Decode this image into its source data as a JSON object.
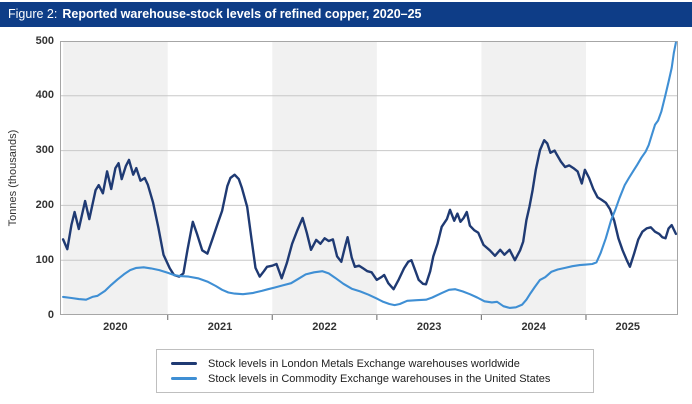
{
  "figure": {
    "label": "Figure 2:",
    "title": "Reported warehouse-stock levels of refined copper, 2020–25"
  },
  "colors": {
    "header_bg": "#0e3d87",
    "lme_line": "#1f3a73",
    "comex_line": "#3f8fd4",
    "band_fill": "#f1f1f1",
    "gridline": "#c8c8c8",
    "plot_border": "#a6a6a6",
    "tick_mark": "#808080",
    "axis_text": "#333333"
  },
  "chart_data": {
    "type": "line",
    "title": "Reported warehouse-stock levels of refined copper, 2020–25",
    "xlabel": "",
    "ylabel": "Tonnes (thousands)",
    "ylim": [
      0,
      500
    ],
    "y_ticks": [
      0,
      100,
      200,
      300,
      400,
      500
    ],
    "x_tick_labels": [
      "2020",
      "2021",
      "2022",
      "2023",
      "2024",
      "2025"
    ],
    "x_range_years": [
      2019.97,
      2025.88
    ],
    "x_year_boundary_ticks": [
      2021,
      2022,
      2023,
      2024,
      2025
    ],
    "shaded_years": [
      2020,
      2022,
      2024
    ],
    "grid": "horizontal",
    "legend_position": "bottom",
    "series": [
      {
        "name": "Stock levels in London Metals Exchange warehouses worldwide",
        "color": "#1f3a73",
        "points": [
          [
            2020.0,
            138
          ],
          [
            2020.04,
            120
          ],
          [
            2020.08,
            165
          ],
          [
            2020.11,
            188
          ],
          [
            2020.15,
            157
          ],
          [
            2020.21,
            208
          ],
          [
            2020.25,
            175
          ],
          [
            2020.31,
            228
          ],
          [
            2020.34,
            237
          ],
          [
            2020.38,
            222
          ],
          [
            2020.42,
            262
          ],
          [
            2020.46,
            230
          ],
          [
            2020.5,
            268
          ],
          [
            2020.53,
            277
          ],
          [
            2020.56,
            248
          ],
          [
            2020.6,
            272
          ],
          [
            2020.63,
            283
          ],
          [
            2020.67,
            256
          ],
          [
            2020.7,
            268
          ],
          [
            2020.74,
            245
          ],
          [
            2020.78,
            250
          ],
          [
            2020.81,
            238
          ],
          [
            2020.86,
            205
          ],
          [
            2020.91,
            160
          ],
          [
            2020.96,
            110
          ],
          [
            2021.02,
            85
          ],
          [
            2021.06,
            73
          ],
          [
            2021.11,
            70
          ],
          [
            2021.15,
            76
          ],
          [
            2021.19,
            120
          ],
          [
            2021.24,
            170
          ],
          [
            2021.28,
            148
          ],
          [
            2021.33,
            118
          ],
          [
            2021.38,
            112
          ],
          [
            2021.43,
            140
          ],
          [
            2021.48,
            168
          ],
          [
            2021.52,
            190
          ],
          [
            2021.57,
            235
          ],
          [
            2021.6,
            250
          ],
          [
            2021.64,
            256
          ],
          [
            2021.68,
            248
          ],
          [
            2021.71,
            232
          ],
          [
            2021.76,
            197
          ],
          [
            2021.8,
            140
          ],
          [
            2021.84,
            86
          ],
          [
            2021.88,
            70
          ],
          [
            2021.92,
            80
          ],
          [
            2021.95,
            88
          ],
          [
            2022.0,
            90
          ],
          [
            2022.04,
            93
          ],
          [
            2022.09,
            67
          ],
          [
            2022.14,
            95
          ],
          [
            2022.19,
            130
          ],
          [
            2022.24,
            155
          ],
          [
            2022.29,
            177
          ],
          [
            2022.33,
            150
          ],
          [
            2022.37,
            119
          ],
          [
            2022.42,
            137
          ],
          [
            2022.46,
            130
          ],
          [
            2022.5,
            140
          ],
          [
            2022.54,
            135
          ],
          [
            2022.58,
            138
          ],
          [
            2022.62,
            107
          ],
          [
            2022.66,
            97
          ],
          [
            2022.7,
            128
          ],
          [
            2022.72,
            142
          ],
          [
            2022.76,
            105
          ],
          [
            2022.79,
            88
          ],
          [
            2022.83,
            90
          ],
          [
            2022.87,
            85
          ],
          [
            2022.91,
            80
          ],
          [
            2022.95,
            78
          ],
          [
            2023.0,
            64
          ],
          [
            2023.05,
            70
          ],
          [
            2023.07,
            73
          ],
          [
            2023.11,
            58
          ],
          [
            2023.16,
            47
          ],
          [
            2023.21,
            65
          ],
          [
            2023.26,
            85
          ],
          [
            2023.3,
            97
          ],
          [
            2023.33,
            100
          ],
          [
            2023.37,
            80
          ],
          [
            2023.4,
            64
          ],
          [
            2023.44,
            57
          ],
          [
            2023.47,
            56
          ],
          [
            2023.51,
            80
          ],
          [
            2023.54,
            107
          ],
          [
            2023.58,
            130
          ],
          [
            2023.62,
            161
          ],
          [
            2023.67,
            175
          ],
          [
            2023.7,
            192
          ],
          [
            2023.74,
            172
          ],
          [
            2023.77,
            185
          ],
          [
            2023.8,
            170
          ],
          [
            2023.83,
            177
          ],
          [
            2023.86,
            188
          ],
          [
            2023.89,
            163
          ],
          [
            2023.93,
            155
          ],
          [
            2023.97,
            150
          ],
          [
            2024.02,
            128
          ],
          [
            2024.08,
            118
          ],
          [
            2024.13,
            108
          ],
          [
            2024.18,
            119
          ],
          [
            2024.22,
            110
          ],
          [
            2024.27,
            119
          ],
          [
            2024.32,
            100
          ],
          [
            2024.37,
            118
          ],
          [
            2024.4,
            134
          ],
          [
            2024.43,
            173
          ],
          [
            2024.46,
            198
          ],
          [
            2024.49,
            228
          ],
          [
            2024.52,
            265
          ],
          [
            2024.56,
            301
          ],
          [
            2024.6,
            319
          ],
          [
            2024.63,
            313
          ],
          [
            2024.66,
            296
          ],
          [
            2024.7,
            300
          ],
          [
            2024.72,
            293
          ],
          [
            2024.76,
            280
          ],
          [
            2024.8,
            270
          ],
          [
            2024.84,
            273
          ],
          [
            2024.88,
            268
          ],
          [
            2024.92,
            262
          ],
          [
            2024.96,
            240
          ],
          [
            2024.99,
            265
          ],
          [
            2025.03,
            250
          ],
          [
            2025.07,
            230
          ],
          [
            2025.11,
            215
          ],
          [
            2025.15,
            210
          ],
          [
            2025.19,
            205
          ],
          [
            2025.23,
            193
          ],
          [
            2025.27,
            172
          ],
          [
            2025.31,
            140
          ],
          [
            2025.35,
            118
          ],
          [
            2025.39,
            100
          ],
          [
            2025.42,
            88
          ],
          [
            2025.46,
            112
          ],
          [
            2025.5,
            138
          ],
          [
            2025.54,
            152
          ],
          [
            2025.58,
            158
          ],
          [
            2025.62,
            160
          ],
          [
            2025.66,
            152
          ],
          [
            2025.7,
            148
          ],
          [
            2025.73,
            142
          ],
          [
            2025.76,
            140
          ],
          [
            2025.79,
            158
          ],
          [
            2025.82,
            164
          ],
          [
            2025.86,
            148
          ]
        ]
      },
      {
        "name": "Stock levels in Commodity Exchange warehouses in the United States",
        "color": "#3f8fd4",
        "points": [
          [
            2020.0,
            33
          ],
          [
            2020.08,
            31
          ],
          [
            2020.15,
            29
          ],
          [
            2020.22,
            28
          ],
          [
            2020.28,
            33
          ],
          [
            2020.33,
            35
          ],
          [
            2020.4,
            44
          ],
          [
            2020.46,
            55
          ],
          [
            2020.52,
            65
          ],
          [
            2020.58,
            74
          ],
          [
            2020.64,
            82
          ],
          [
            2020.7,
            86
          ],
          [
            2020.77,
            87
          ],
          [
            2020.84,
            85
          ],
          [
            2020.92,
            82
          ],
          [
            2021.0,
            77
          ],
          [
            2021.06,
            73
          ],
          [
            2021.12,
            71
          ],
          [
            2021.2,
            70
          ],
          [
            2021.29,
            67
          ],
          [
            2021.38,
            61
          ],
          [
            2021.46,
            53
          ],
          [
            2021.52,
            46
          ],
          [
            2021.58,
            41
          ],
          [
            2021.64,
            39
          ],
          [
            2021.72,
            38
          ],
          [
            2021.81,
            40
          ],
          [
            2021.9,
            44
          ],
          [
            2021.96,
            47
          ],
          [
            2022.02,
            50
          ],
          [
            2022.1,
            54
          ],
          [
            2022.18,
            58
          ],
          [
            2022.25,
            66
          ],
          [
            2022.32,
            74
          ],
          [
            2022.4,
            78
          ],
          [
            2022.48,
            80
          ],
          [
            2022.54,
            76
          ],
          [
            2022.6,
            68
          ],
          [
            2022.68,
            57
          ],
          [
            2022.76,
            48
          ],
          [
            2022.84,
            43
          ],
          [
            2022.92,
            37
          ],
          [
            2023.0,
            30
          ],
          [
            2023.06,
            24
          ],
          [
            2023.12,
            20
          ],
          [
            2023.17,
            18
          ],
          [
            2023.22,
            20
          ],
          [
            2023.29,
            26
          ],
          [
            2023.38,
            27
          ],
          [
            2023.47,
            28
          ],
          [
            2023.53,
            32
          ],
          [
            2023.62,
            40
          ],
          [
            2023.69,
            46
          ],
          [
            2023.75,
            47
          ],
          [
            2023.82,
            43
          ],
          [
            2023.89,
            38
          ],
          [
            2023.96,
            32
          ],
          [
            2024.03,
            25
          ],
          [
            2024.1,
            23
          ],
          [
            2024.15,
            24
          ],
          [
            2024.21,
            16
          ],
          [
            2024.27,
            13
          ],
          [
            2024.33,
            14
          ],
          [
            2024.39,
            19
          ],
          [
            2024.43,
            28
          ],
          [
            2024.47,
            40
          ],
          [
            2024.51,
            51
          ],
          [
            2024.56,
            64
          ],
          [
            2024.61,
            69
          ],
          [
            2024.67,
            79
          ],
          [
            2024.73,
            83
          ],
          [
            2024.8,
            86
          ],
          [
            2024.87,
            89
          ],
          [
            2024.94,
            91
          ],
          [
            2025.0,
            92
          ],
          [
            2025.06,
            93
          ],
          [
            2025.1,
            96
          ],
          [
            2025.14,
            113
          ],
          [
            2025.19,
            140
          ],
          [
            2025.24,
            173
          ],
          [
            2025.28,
            192
          ],
          [
            2025.32,
            213
          ],
          [
            2025.37,
            237
          ],
          [
            2025.41,
            250
          ],
          [
            2025.45,
            262
          ],
          [
            2025.49,
            274
          ],
          [
            2025.53,
            287
          ],
          [
            2025.57,
            298
          ],
          [
            2025.6,
            310
          ],
          [
            2025.63,
            329
          ],
          [
            2025.66,
            347
          ],
          [
            2025.69,
            355
          ],
          [
            2025.72,
            371
          ],
          [
            2025.76,
            402
          ],
          [
            2025.79,
            426
          ],
          [
            2025.82,
            451
          ],
          [
            2025.84,
            478
          ],
          [
            2025.86,
            497
          ]
        ]
      }
    ]
  }
}
